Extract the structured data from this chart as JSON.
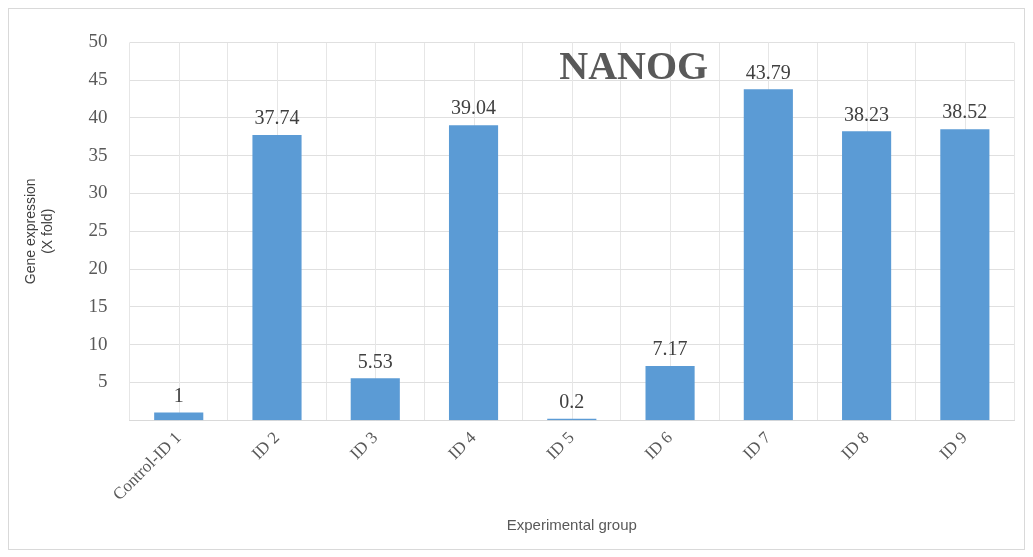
{
  "chart_data": {
    "type": "bar",
    "title": "NANOG",
    "xlabel": "Experimental group",
    "ylabel": "Gene expression\n(X fold)",
    "categories": [
      "Control-ID 1",
      "ID 2",
      "ID 3",
      "ID 4",
      "ID 5",
      "ID 6",
      "ID 7",
      "ID 8",
      "ID 9"
    ],
    "values": [
      1,
      37.74,
      5.53,
      39.04,
      0.2,
      7.17,
      43.79,
      38.23,
      38.52
    ],
    "color": "#5b9bd5",
    "ylim": [
      0,
      50
    ],
    "yticks": [
      5,
      10,
      15,
      20,
      25,
      30,
      35,
      40,
      45,
      50
    ],
    "grid": true,
    "data_labels": true
  }
}
